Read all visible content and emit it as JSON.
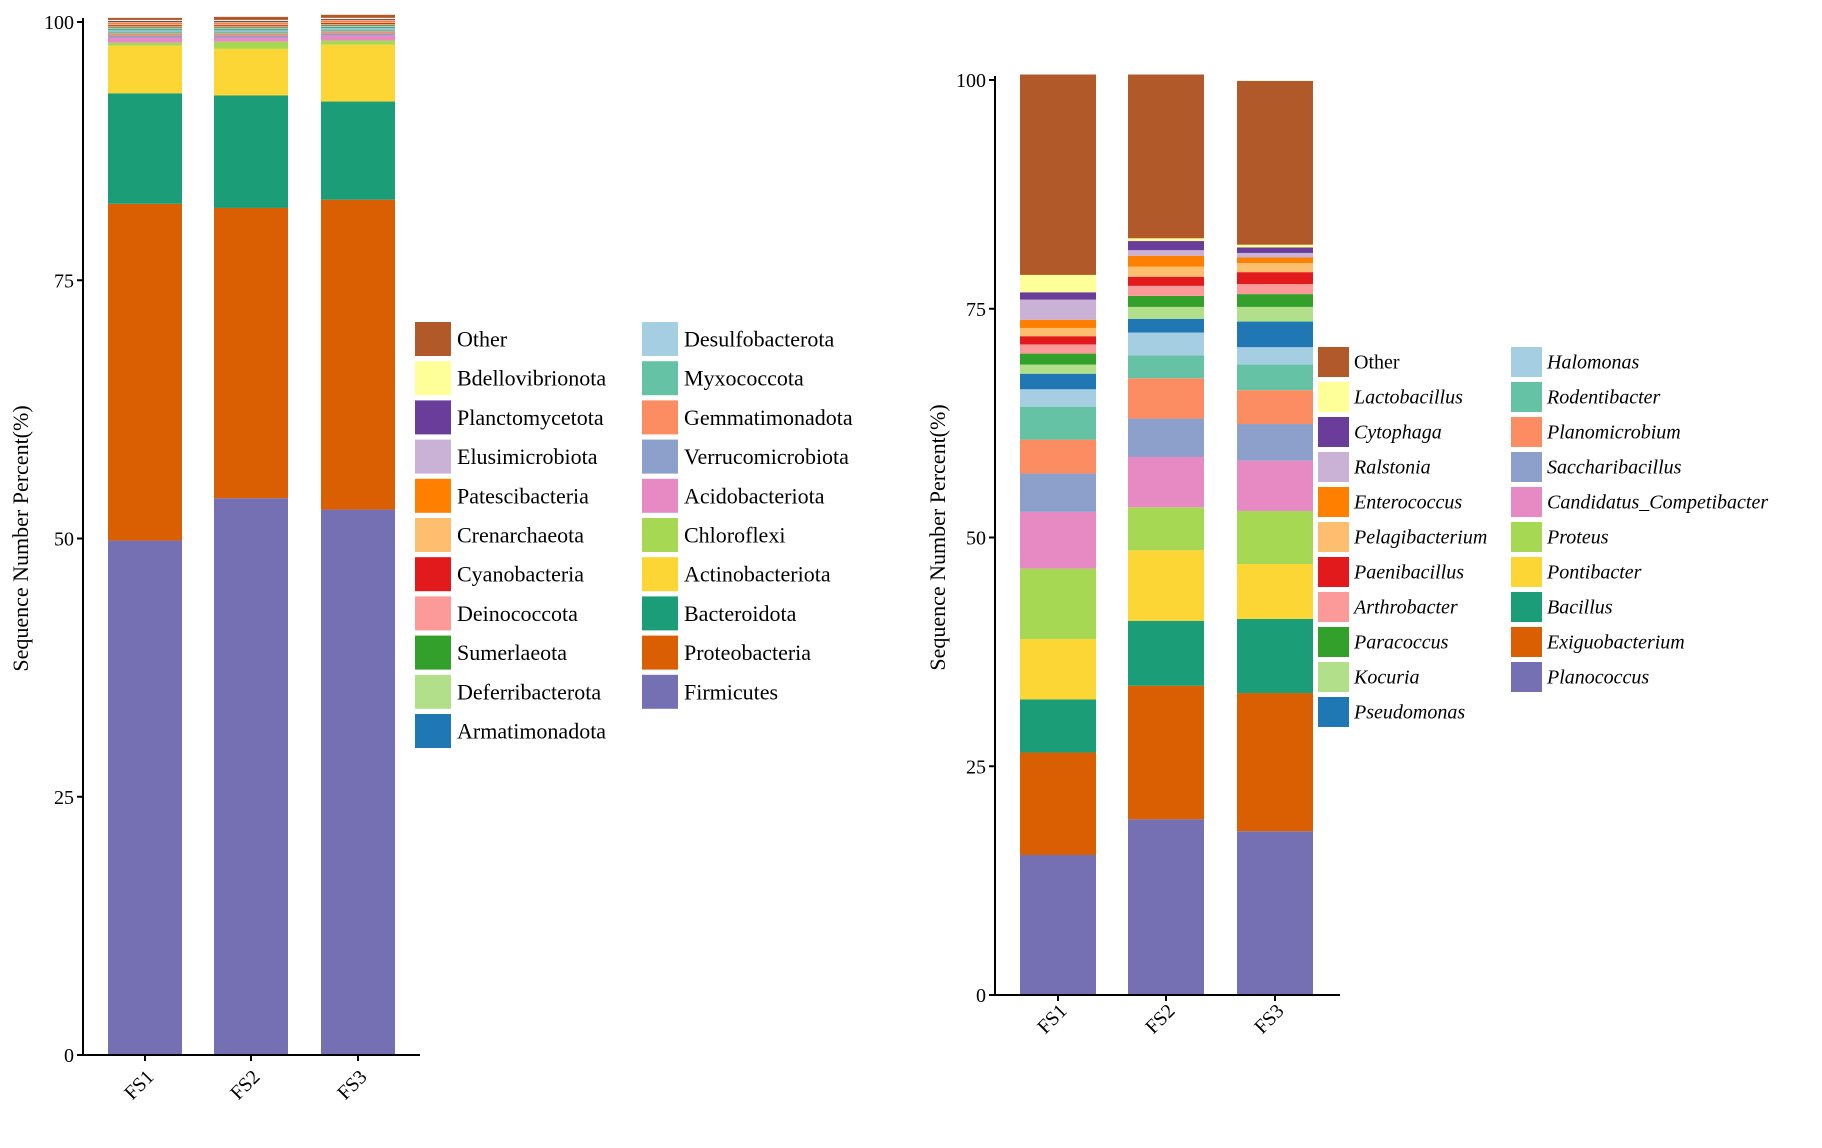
{
  "chart_data": [
    {
      "type": "bar",
      "stacked": true,
      "ylabel": "Sequence Number Percent(%)",
      "ylim": [
        0,
        100
      ],
      "yticks": [
        0,
        25,
        50,
        75,
        100
      ],
      "categories": [
        "FS1",
        "FS2",
        "FS3"
      ],
      "grid": false,
      "legend_position": "right",
      "italic_legend": false,
      "series": [
        {
          "name": "Firmicutes",
          "color": "#7570b3",
          "values": [
            49.8,
            53.9,
            52.8
          ]
        },
        {
          "name": "Proteobacteria",
          "color": "#d95f02",
          "values": [
            32.6,
            28.1,
            30.0
          ]
        },
        {
          "name": "Bacteroidota",
          "color": "#1b9e77",
          "values": [
            10.7,
            10.9,
            9.5
          ]
        },
        {
          "name": "Actinobacteriota",
          "color": "#fcd634",
          "values": [
            4.6,
            4.5,
            5.5
          ]
        },
        {
          "name": "Chloroflexi",
          "color": "#a6d854",
          "values": [
            0.3,
            0.7,
            0.4
          ]
        },
        {
          "name": "Acidobacteriota",
          "color": "#e78ac3",
          "values": [
            0.5,
            0.4,
            0.5
          ]
        },
        {
          "name": "Verrucomicrobiota",
          "color": "#8da0cb",
          "values": [
            0.2,
            0.2,
            0.2
          ]
        },
        {
          "name": "Gemmatimonadota",
          "color": "#fc8d62",
          "values": [
            0.2,
            0.2,
            0.2
          ]
        },
        {
          "name": "Myxococcota",
          "color": "#66c2a5",
          "values": [
            0.2,
            0.2,
            0.2
          ]
        },
        {
          "name": "Desulfobacterota",
          "color": "#a6cee3",
          "values": [
            0.1,
            0.1,
            0.1
          ]
        },
        {
          "name": "Armatimonadota",
          "color": "#1f78b4",
          "values": [
            0.1,
            0.1,
            0.1
          ]
        },
        {
          "name": "Deferribacterota",
          "color": "#b2df8a",
          "values": [
            0.1,
            0.1,
            0.1
          ]
        },
        {
          "name": "Sumerlaeota",
          "color": "#33a02c",
          "values": [
            0.1,
            0.1,
            0.1
          ]
        },
        {
          "name": "Deinococcota",
          "color": "#fb9a99",
          "values": [
            0.1,
            0.1,
            0.1
          ]
        },
        {
          "name": "Cyanobacteria",
          "color": "#e31a1c",
          "values": [
            0.1,
            0.1,
            0.1
          ]
        },
        {
          "name": "Crenarchaeota",
          "color": "#fdbf6f",
          "values": [
            0.1,
            0.1,
            0.1
          ]
        },
        {
          "name": "Patescibacteria",
          "color": "#ff7f00",
          "values": [
            0.1,
            0.1,
            0.1
          ]
        },
        {
          "name": "Elusimicrobiota",
          "color": "#cab2d6",
          "values": [
            0.1,
            0.1,
            0.1
          ]
        },
        {
          "name": "Planctomycetota",
          "color": "#6a3d9a",
          "values": [
            0.1,
            0.1,
            0.1
          ]
        },
        {
          "name": "Bdellovibrionota",
          "color": "#ffff99",
          "values": [
            0.1,
            0.1,
            0.1
          ]
        },
        {
          "name": "Other",
          "color": "#b15928",
          "values": [
            0.2,
            0.3,
            0.3
          ]
        }
      ],
      "legend_columns": [
        [
          "Other",
          "Bdellovibrionota",
          "Planctomycetota",
          "Elusimicrobiota",
          "Patescibacteria",
          "Crenarchaeota",
          "Cyanobacteria",
          "Deinococcota",
          "Sumerlaeota",
          "Deferribacterota",
          "Armatimonadota"
        ],
        [
          "Desulfobacterota",
          "Myxococcota",
          "Gemmatimonadota",
          "Verrucomicrobiota",
          "Acidobacteriota",
          "Chloroflexi",
          "Actinobacteriota",
          "Bacteroidota",
          "Proteobacteria",
          "Firmicutes"
        ]
      ]
    },
    {
      "type": "bar",
      "stacked": true,
      "ylabel": "Sequence Number Percent(%)",
      "ylim": [
        0,
        100
      ],
      "yticks": [
        0,
        25,
        50,
        75,
        100
      ],
      "categories": [
        "FS1",
        "FS2",
        "FS3"
      ],
      "grid": false,
      "legend_position": "right",
      "italic_legend": true,
      "series": [
        {
          "name": "Planococcus",
          "color": "#7570b3",
          "values": [
            15.3,
            19.2,
            17.9
          ]
        },
        {
          "name": "Exiguobacterium",
          "color": "#d95f02",
          "values": [
            11.2,
            14.6,
            15.1
          ]
        },
        {
          "name": "Bacillus",
          "color": "#1b9e77",
          "values": [
            5.8,
            7.1,
            8.1
          ]
        },
        {
          "name": "Pontibacter",
          "color": "#fcd634",
          "values": [
            6.6,
            7.7,
            6.0
          ]
        },
        {
          "name": "Proteus",
          "color": "#a6d854",
          "values": [
            7.7,
            4.7,
            5.8
          ]
        },
        {
          "name": "Candidatus_Competibacter",
          "color": "#e78ac3",
          "values": [
            6.2,
            5.5,
            5.5
          ]
        },
        {
          "name": "Saccharibacillus",
          "color": "#8da0cb",
          "values": [
            4.2,
            4.2,
            4.0
          ]
        },
        {
          "name": "Planomicrobium",
          "color": "#fc8d62",
          "values": [
            3.7,
            4.4,
            3.7
          ]
        },
        {
          "name": "Rodentibacter",
          "color": "#66c2a5",
          "values": [
            3.6,
            2.5,
            2.8
          ]
        },
        {
          "name": "Halomonas",
          "color": "#a6cee3",
          "values": [
            1.9,
            2.5,
            1.9
          ]
        },
        {
          "name": "Pseudomonas",
          "color": "#1f78b4",
          "values": [
            1.7,
            1.5,
            2.8
          ]
        },
        {
          "name": "Kocuria",
          "color": "#b2df8a",
          "values": [
            1.0,
            1.3,
            1.6
          ]
        },
        {
          "name": "Paracoccus",
          "color": "#33a02c",
          "values": [
            1.2,
            1.2,
            1.4
          ]
        },
        {
          "name": "Arthrobacter",
          "color": "#fb9a99",
          "values": [
            1.0,
            1.1,
            1.1
          ]
        },
        {
          "name": "Paenibacillus",
          "color": "#e31a1c",
          "values": [
            0.9,
            1.0,
            1.3
          ]
        },
        {
          "name": "Pelagibacterium",
          "color": "#fdbf6f",
          "values": [
            0.9,
            1.1,
            1.0
          ]
        },
        {
          "name": "Enterococcus",
          "color": "#ff7f00",
          "values": [
            0.9,
            1.2,
            0.6
          ]
        },
        {
          "name": "Ralstonia",
          "color": "#cab2d6",
          "values": [
            2.2,
            0.6,
            0.5
          ]
        },
        {
          "name": "Cytophaga",
          "color": "#6a3d9a",
          "values": [
            0.8,
            1.0,
            0.6
          ]
        },
        {
          "name": "Lactobacillus",
          "color": "#ffff99",
          "values": [
            1.9,
            0.3,
            0.3
          ]
        },
        {
          "name": "Other",
          "color": "#b15928",
          "values": [
            21.9,
            17.9,
            17.9
          ]
        }
      ],
      "legend_columns": [
        [
          "Other",
          "Lactobacillus",
          "Cytophaga",
          "Ralstonia",
          "Enterococcus",
          "Pelagibacterium",
          "Paenibacillus",
          "Arthrobacter",
          "Paracoccus",
          "Kocuria",
          "Pseudomonas"
        ],
        [
          "Halomonas",
          "Rodentibacter",
          "Planomicrobium",
          "Saccharibacillus",
          "Candidatus_Competibacter",
          "Proteus",
          "Pontibacter",
          "Bacillus",
          "Exiguobacterium",
          "Planococcus"
        ]
      ]
    }
  ]
}
